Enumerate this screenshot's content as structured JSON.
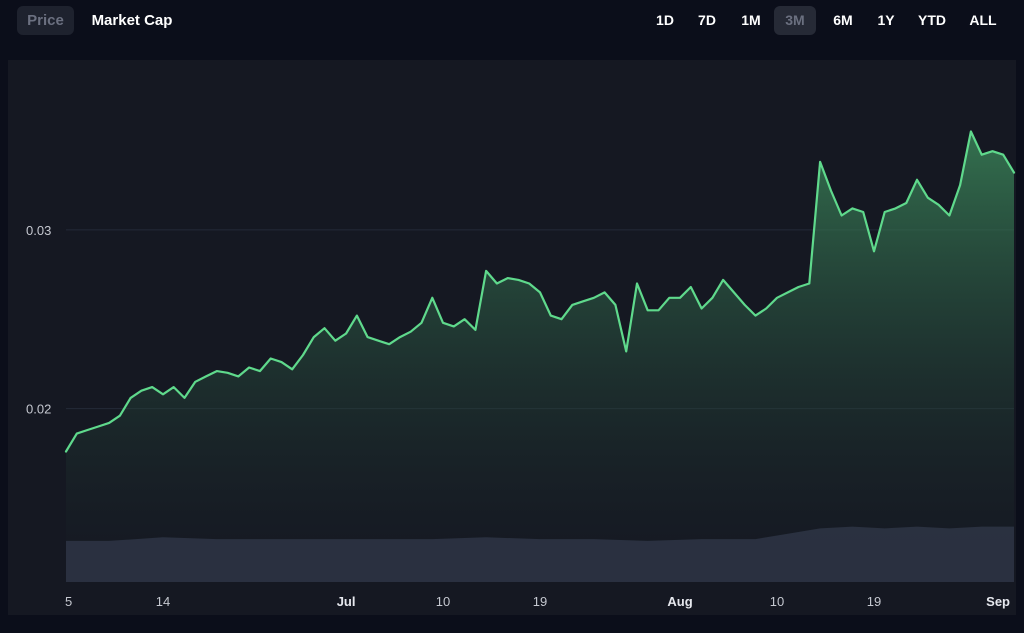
{
  "tabs": [
    {
      "label": "Price",
      "active": true
    },
    {
      "label": "Market Cap",
      "active": false
    }
  ],
  "ranges": [
    {
      "label": "1D",
      "active": false
    },
    {
      "label": "7D",
      "active": false
    },
    {
      "label": "1M",
      "active": false
    },
    {
      "label": "3M",
      "active": true
    },
    {
      "label": "6M",
      "active": false
    },
    {
      "label": "1Y",
      "active": false
    },
    {
      "label": "YTD",
      "active": false
    },
    {
      "label": "ALL",
      "active": false
    }
  ],
  "colors": {
    "line": "#5fd98c",
    "volume": "#2e3446",
    "plot_bg": "#151822",
    "page_bg": "#0b0e1a"
  },
  "chart_data": {
    "type": "line",
    "title": "",
    "xlabel": "",
    "ylabel": "",
    "ylim": [
      0.0103,
      0.0395
    ],
    "yticks": [
      {
        "label": "0.02",
        "value": 0.02
      },
      {
        "label": "0.03",
        "value": 0.03
      }
    ],
    "xlim": [
      "2024-06-05",
      "2024-09-01"
    ],
    "xticks": [
      {
        "label": "5",
        "date": "2024-06-05",
        "bold": false
      },
      {
        "label": "14",
        "date": "2024-06-14",
        "bold": false
      },
      {
        "label": "Jul",
        "date": "2024-07-01",
        "bold": true
      },
      {
        "label": "10",
        "date": "2024-07-10",
        "bold": false
      },
      {
        "label": "19",
        "date": "2024-07-19",
        "bold": false
      },
      {
        "label": "Aug",
        "date": "2024-08-01",
        "bold": true
      },
      {
        "label": "10",
        "date": "2024-08-10",
        "bold": false
      },
      {
        "label": "19",
        "date": "2024-08-19",
        "bold": false
      },
      {
        "label": "Sep",
        "date": "2024-09-01",
        "bold": true
      }
    ],
    "series": [
      {
        "kind": "price",
        "x": [
          "2024-06-05",
          "2024-06-06",
          "2024-06-07",
          "2024-06-08",
          "2024-06-09",
          "2024-06-10",
          "2024-06-11",
          "2024-06-12",
          "2024-06-13",
          "2024-06-14",
          "2024-06-15",
          "2024-06-16",
          "2024-06-17",
          "2024-06-18",
          "2024-06-19",
          "2024-06-20",
          "2024-06-21",
          "2024-06-22",
          "2024-06-23",
          "2024-06-24",
          "2024-06-25",
          "2024-06-26",
          "2024-06-27",
          "2024-06-28",
          "2024-06-29",
          "2024-06-30",
          "2024-07-01",
          "2024-07-02",
          "2024-07-03",
          "2024-07-04",
          "2024-07-05",
          "2024-07-06",
          "2024-07-07",
          "2024-07-08",
          "2024-07-09",
          "2024-07-10",
          "2024-07-11",
          "2024-07-12",
          "2024-07-13",
          "2024-07-14",
          "2024-07-15",
          "2024-07-16",
          "2024-07-17",
          "2024-07-18",
          "2024-07-19",
          "2024-07-20",
          "2024-07-21",
          "2024-07-22",
          "2024-07-23",
          "2024-07-24",
          "2024-07-25",
          "2024-07-26",
          "2024-07-27",
          "2024-07-28",
          "2024-07-29",
          "2024-07-30",
          "2024-07-31",
          "2024-08-01",
          "2024-08-02",
          "2024-08-03",
          "2024-08-04",
          "2024-08-05",
          "2024-08-06",
          "2024-08-07",
          "2024-08-08",
          "2024-08-09",
          "2024-08-10",
          "2024-08-11",
          "2024-08-12",
          "2024-08-13",
          "2024-08-14",
          "2024-08-15",
          "2024-08-16",
          "2024-08-17",
          "2024-08-18",
          "2024-08-19",
          "2024-08-20",
          "2024-08-21",
          "2024-08-22",
          "2024-08-23",
          "2024-08-24",
          "2024-08-25",
          "2024-08-26",
          "2024-08-27",
          "2024-08-28",
          "2024-08-29",
          "2024-08-30",
          "2024-08-31",
          "2024-09-01"
        ],
        "values": [
          0.0176,
          0.0186,
          0.0188,
          0.019,
          0.0192,
          0.0196,
          0.0206,
          0.021,
          0.0212,
          0.0208,
          0.0212,
          0.0206,
          0.0215,
          0.0218,
          0.0221,
          0.022,
          0.0218,
          0.0223,
          0.0221,
          0.0228,
          0.0226,
          0.0222,
          0.023,
          0.024,
          0.0245,
          0.0238,
          0.0242,
          0.0252,
          0.024,
          0.0238,
          0.0236,
          0.024,
          0.0243,
          0.0248,
          0.0262,
          0.0248,
          0.0246,
          0.025,
          0.0244,
          0.0277,
          0.027,
          0.0273,
          0.0272,
          0.027,
          0.0265,
          0.0252,
          0.025,
          0.0258,
          0.026,
          0.0262,
          0.0265,
          0.0258,
          0.0232,
          0.027,
          0.0255,
          0.0255,
          0.0262,
          0.0262,
          0.0268,
          0.0256,
          0.0262,
          0.0272,
          0.0265,
          0.0258,
          0.0252,
          0.0256,
          0.0262,
          0.0265,
          0.0268,
          0.027,
          0.0338,
          0.0322,
          0.0308,
          0.0312,
          0.031,
          0.0288,
          0.031,
          0.0312,
          0.0315,
          0.0328,
          0.0318,
          0.0314,
          0.0308,
          0.0325,
          0.0355,
          0.0342,
          0.0344,
          0.0342,
          0.0332
        ]
      },
      {
        "kind": "volume",
        "x": [
          "2024-06-05",
          "2024-06-09",
          "2024-06-14",
          "2024-06-19",
          "2024-06-24",
          "2024-06-29",
          "2024-07-04",
          "2024-07-09",
          "2024-07-14",
          "2024-07-19",
          "2024-07-24",
          "2024-07-29",
          "2024-08-03",
          "2024-08-08",
          "2024-08-11",
          "2024-08-14",
          "2024-08-17",
          "2024-08-20",
          "2024-08-23",
          "2024-08-26",
          "2024-08-29",
          "2024-09-01"
        ],
        "values": [
          0.0126,
          0.0126,
          0.0128,
          0.0127,
          0.0127,
          0.0127,
          0.0127,
          0.0127,
          0.0128,
          0.0127,
          0.0127,
          0.0126,
          0.0127,
          0.0127,
          0.013,
          0.0133,
          0.0134,
          0.0133,
          0.0134,
          0.0133,
          0.0134,
          0.0134
        ]
      }
    ],
    "grid": true
  }
}
